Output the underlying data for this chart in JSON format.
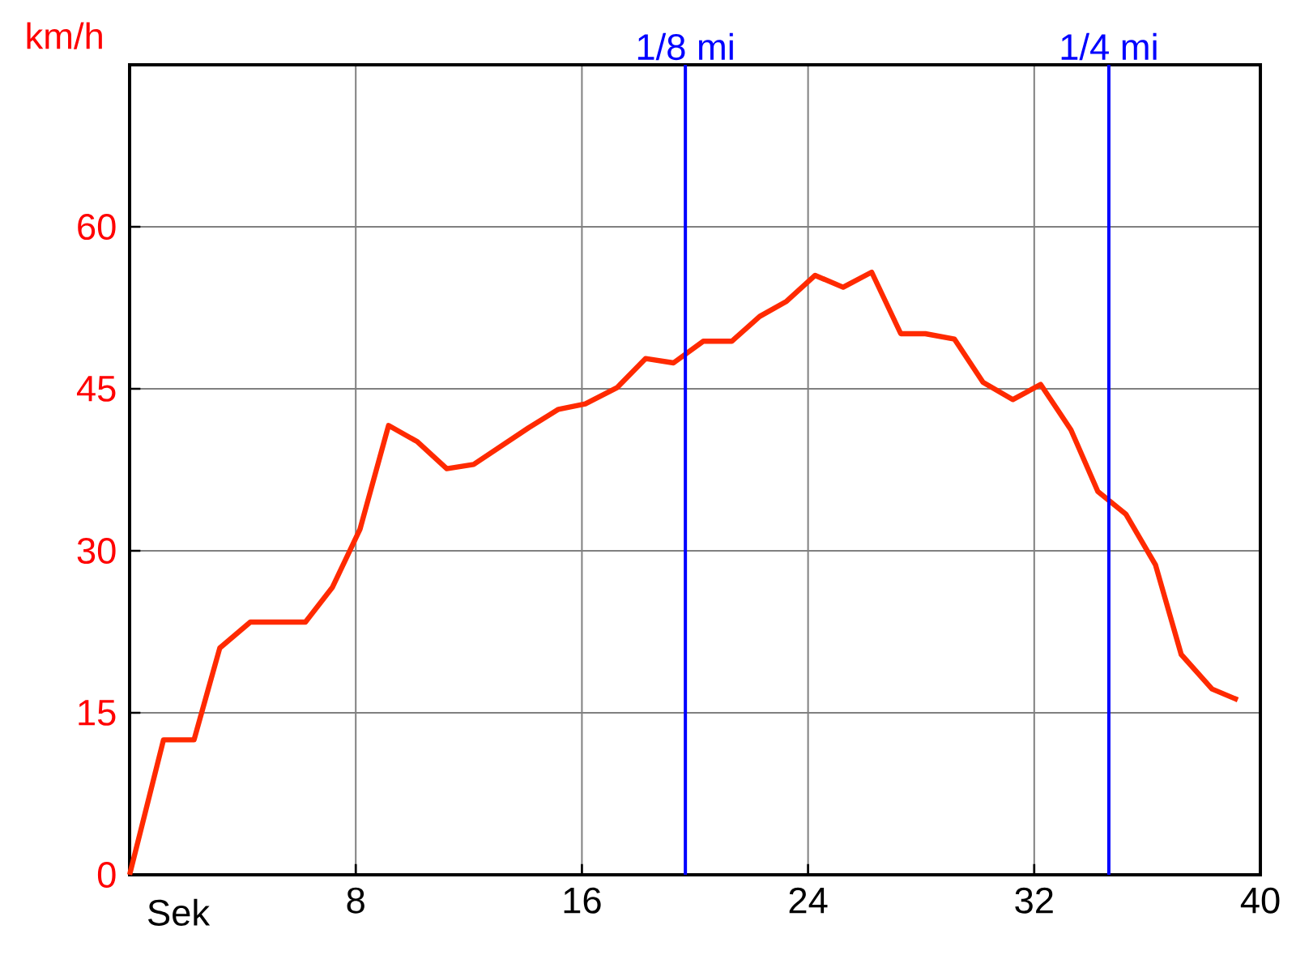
{
  "chart_data": {
    "type": "line",
    "xlabel": "Sek",
    "ylabel": "km/h",
    "x": [
      0,
      1.2,
      2.28,
      3.19,
      4.27,
      6.22,
      7.17,
      8.15,
      9.16,
      10.18,
      11.22,
      12.17,
      14.12,
      15.17,
      16.12,
      17.24,
      18.25,
      19.24,
      20.29,
      21.3,
      22.29,
      23.24,
      24.25,
      25.24,
      26.25,
      27.28,
      28.15,
      29.18,
      30.19,
      31.24,
      32.23,
      33.3,
      34.25,
      35.24,
      36.29,
      37.2,
      38.29,
      39.2
    ],
    "series": [
      {
        "color": "#ff2a00",
        "values": [
          0,
          12.5,
          12.5,
          21,
          23.4,
          23.4,
          26.6,
          32,
          41.6,
          40.1,
          37.6,
          38,
          41.4,
          43.1,
          43.6,
          45.1,
          47.8,
          47.4,
          49.4,
          49.4,
          51.7,
          53.1,
          55.5,
          54.4,
          55.8,
          50.1,
          50.1,
          49.6,
          45.6,
          44,
          45.4,
          41.2,
          35.5,
          33.4,
          28.7,
          20.4,
          17.2,
          16.2
        ]
      }
    ],
    "xlim": [
      0,
      40
    ],
    "ylim": [
      0,
      75
    ],
    "xticks": [
      8,
      16,
      24,
      32,
      40
    ],
    "yticks": [
      0,
      15,
      30,
      45,
      60
    ],
    "ref_lines": [
      {
        "axis": "x",
        "value": 19.66,
        "label": "1/8 mi",
        "color": "#0000ff"
      },
      {
        "axis": "x",
        "value": 34.64,
        "label": "1/4 mi",
        "color": "#0000ff"
      }
    ],
    "grid": true,
    "marker": "none",
    "line_style": "solid"
  }
}
